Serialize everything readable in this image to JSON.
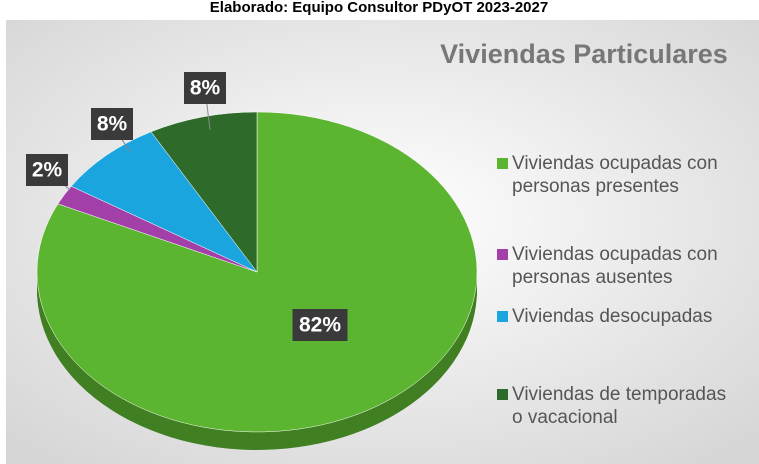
{
  "caption": "Elaborado: Equipo Consultor PDyOT 2023-2027",
  "chart_data": {
    "type": "pie",
    "title": "Viviendas Particulares",
    "categories": [
      "Viviendas ocupadas con personas presentes",
      "Viviendas ocupadas con personas ausentes",
      "Viviendas desocupadas",
      "Viviendas de temporadas o vacacional"
    ],
    "values": [
      82,
      2,
      8,
      8
    ],
    "value_labels": [
      "82%",
      "2%",
      "8%",
      "8%"
    ],
    "colors": [
      "#5cb531",
      "#a23fa9",
      "#1aa5de",
      "#2e6b2a"
    ],
    "legend": "right"
  }
}
